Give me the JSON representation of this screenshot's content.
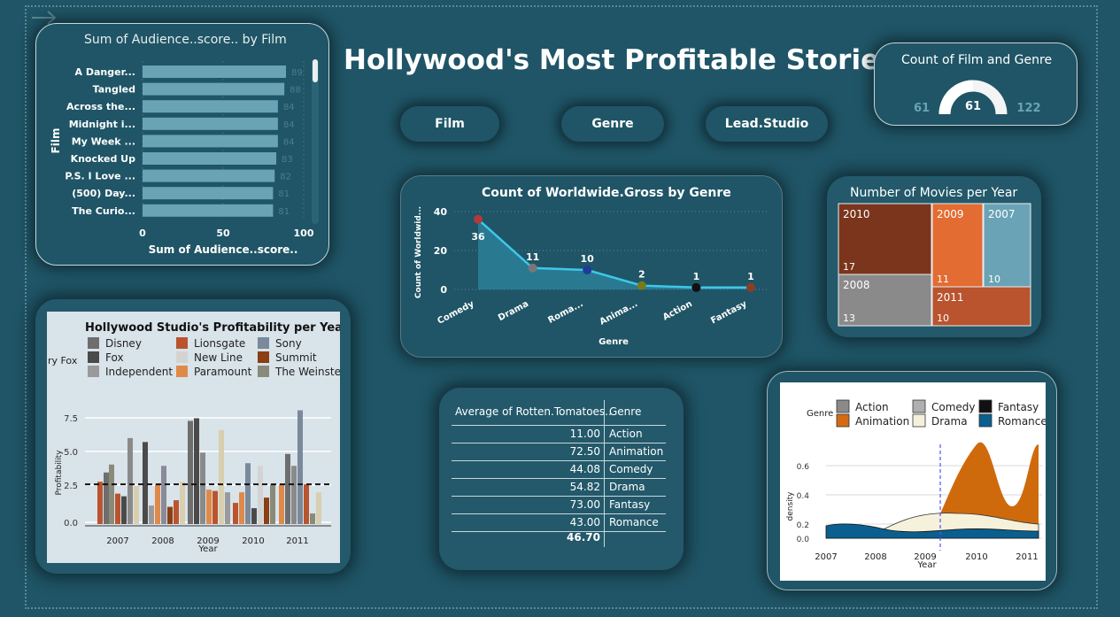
{
  "page": {
    "title": "Hollywood's Most Profitable Stories",
    "nav_arrow": "right-arrow-icon"
  },
  "slicers": [
    {
      "label": "Film"
    },
    {
      "label": "Genre"
    },
    {
      "label": "Lead.Studio"
    }
  ],
  "bar_chart": {
    "title": "Sum of Audience..score.. by Film",
    "xlabel": "Sum of Audience..score..",
    "ylabel": "Film",
    "x_ticks": [
      "0",
      "50",
      "100"
    ],
    "labels": [
      "A Danger...",
      "Tangled",
      "Across the...",
      "Midnight i...",
      "My Week ...",
      "Knocked Up",
      "P.S. I Love ...",
      "(500) Day...",
      "The Curio..."
    ],
    "value_labels": [
      "89",
      "88",
      "84",
      "84",
      "84",
      "83",
      "82",
      "81",
      "81"
    ]
  },
  "gauge": {
    "title": "Count of Film and Genre",
    "min": "61",
    "value": "61",
    "max": "122",
    "fraction": 0.5
  },
  "line_chart": {
    "title": "Count of Worldwide.Gross by Genre",
    "xlabel": "Genre",
    "ylabel": "Count of Worldwid...",
    "y_ticks": [
      "40",
      "20",
      "0"
    ],
    "categories": [
      "Comedy",
      "Drama",
      "Roma...",
      "Anima...",
      "Action",
      "Fantasy"
    ],
    "value_labels": [
      "36",
      "11",
      "10",
      "2",
      "1",
      "1"
    ]
  },
  "treemap": {
    "title": "Number of Movies per Year",
    "tiles": [
      {
        "year": "2010",
        "count": "17",
        "color": "#7a351c"
      },
      {
        "year": "2009",
        "count": "11",
        "color": "#e36c33"
      },
      {
        "year": "2007",
        "count": "10",
        "color": "#6aa3b6"
      },
      {
        "year": "2008",
        "count": "13",
        "color": "#8a8a8a"
      },
      {
        "year": "2011",
        "count": "10",
        "color": "#b9542e"
      }
    ]
  },
  "studio_chart": {
    "title": "Hollywood Studio's Profitability per Year",
    "legend": [
      "Disney",
      "Lionsgate",
      "Sony",
      "Fox",
      "New Line",
      "Summit",
      "Independent",
      "Paramount",
      "The Weinstein",
      "ury Fox"
    ],
    "y_ticks": [
      "7.5",
      "5.0",
      "2.5",
      "0.0"
    ],
    "x_ticks": [
      "2007",
      "2008",
      "2009",
      "2010",
      "2011"
    ],
    "ylabel": "Profitability",
    "xlabel": "Year"
  },
  "table": {
    "col1": "Average of Rotten.Tomatoes..",
    "col2": "Genre",
    "rows": [
      {
        "value": "11.00",
        "genre": "Action"
      },
      {
        "value": "72.50",
        "genre": "Animation"
      },
      {
        "value": "44.08",
        "genre": "Comedy"
      },
      {
        "value": "54.82",
        "genre": "Drama"
      },
      {
        "value": "73.00",
        "genre": "Fantasy"
      },
      {
        "value": "43.00",
        "genre": "Romance"
      }
    ],
    "total": "46.70"
  },
  "density_chart": {
    "legend_title": "Genre",
    "legend": [
      "Action",
      "Comedy",
      "Fantasy",
      "Animation",
      "Drama",
      "Romance"
    ],
    "y_ticks": [
      "0.6",
      "0.4",
      "0.2",
      "0.0"
    ],
    "x_ticks": [
      "2007",
      "2008",
      "2009",
      "2010",
      "2011"
    ],
    "ylabel": "density",
    "xlabel": "Year"
  },
  "chart_data": [
    {
      "type": "bar",
      "title": "Sum of Audience..score.. by Film",
      "xlabel": "Sum of Audience..score..",
      "ylabel": "Film",
      "categories": [
        "A Danger...",
        "Tangled",
        "Across the...",
        "Midnight i...",
        "My Week ...",
        "Knocked Up",
        "P.S. I Love ...",
        "(500) Day...",
        "The Curio..."
      ],
      "values": [
        89,
        88,
        84,
        84,
        84,
        83,
        82,
        81,
        81
      ],
      "xlim": [
        0,
        100
      ]
    },
    {
      "type": "area",
      "title": "Count of Worldwide.Gross by Genre",
      "xlabel": "Genre",
      "ylabel": "Count of Worldwid...",
      "categories": [
        "Comedy",
        "Drama",
        "Roma...",
        "Anima...",
        "Action",
        "Fantasy"
      ],
      "values": [
        36,
        11,
        10,
        2,
        1,
        1
      ],
      "ylim": [
        0,
        40
      ]
    },
    {
      "type": "treemap",
      "title": "Number of Movies per Year",
      "categories": [
        "2010",
        "2009",
        "2007",
        "2008",
        "2011"
      ],
      "values": [
        17,
        11,
        10,
        13,
        10
      ]
    }
  ]
}
